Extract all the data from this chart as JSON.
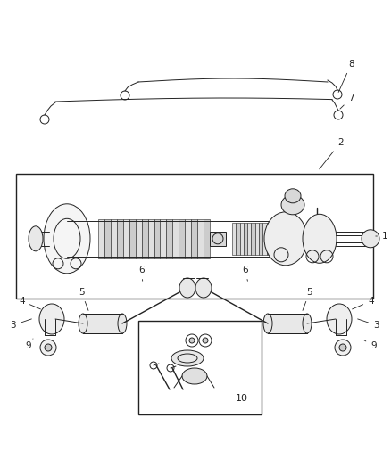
{
  "bg_color": "#ffffff",
  "line_color": "#222222",
  "label_color": "#222222",
  "figsize": [
    4.38,
    5.33
  ],
  "dpi": 100
}
